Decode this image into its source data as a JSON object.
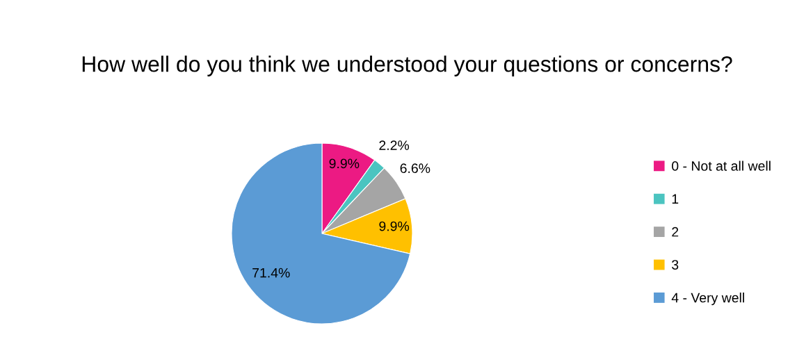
{
  "chart_data": {
    "type": "pie",
    "title": "How well do you think we understood your questions or concerns?",
    "categories": [
      "0 - Not at all well",
      "1",
      "2",
      "3",
      "4 - Very well"
    ],
    "values": [
      9.9,
      2.2,
      6.6,
      9.9,
      71.4
    ],
    "colors": [
      "#ec1a83",
      "#4bc4c0",
      "#a5a5a5",
      "#ffc000",
      "#5b9bd5"
    ],
    "value_labels": [
      "9.9%",
      "2.2%",
      "6.6%",
      "9.9%",
      "71.4%"
    ],
    "legend": "right"
  }
}
